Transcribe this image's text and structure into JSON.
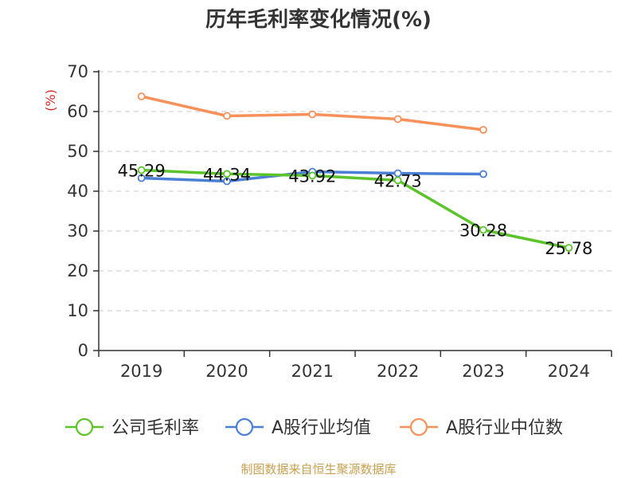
{
  "chart_data": {
    "type": "line",
    "title": "历年毛利率变化情况(%)",
    "ylabel": "(%)",
    "categories": [
      "2019",
      "2020",
      "2021",
      "2022",
      "2023",
      "2024"
    ],
    "ylim": [
      0,
      70
    ],
    "yticks": [
      0,
      10,
      20,
      30,
      40,
      50,
      60,
      70
    ],
    "grid": true,
    "legend": "bottom",
    "series": [
      {
        "name": "公司毛利率",
        "color": "#5cc42b",
        "values": [
          45.29,
          44.34,
          43.92,
          42.73,
          30.28,
          25.78
        ],
        "labels": [
          "45.29",
          "44.34",
          "43.92",
          "42.73",
          "30.28",
          "25.78"
        ]
      },
      {
        "name": "A股行业均值",
        "color": "#4a7fd6",
        "values": [
          43.3,
          42.5,
          44.9,
          44.5,
          44.3,
          null
        ]
      },
      {
        "name": "A股行业中位数",
        "color": "#f79059",
        "values": [
          63.8,
          58.9,
          59.3,
          58.1,
          55.4,
          null
        ]
      }
    ]
  },
  "footer": {
    "source": "制图数据来自恒生聚源数据库"
  }
}
